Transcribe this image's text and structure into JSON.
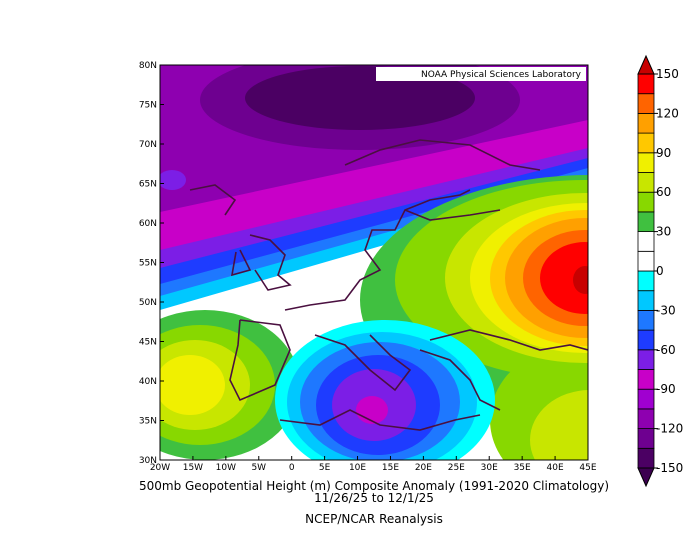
{
  "header": {
    "source": "NOAA Physical Sciences Laboratory"
  },
  "map": {
    "lat_labels": [
      "80N",
      "75N",
      "70N",
      "65N",
      "60N",
      "55N",
      "50N",
      "45N",
      "40N",
      "35N",
      "30N"
    ],
    "lon_labels": [
      "20W",
      "15W",
      "10W",
      "5W",
      "0",
      "5E",
      "10E",
      "15E",
      "20E",
      "25E",
      "30E",
      "35E",
      "40E",
      "45E"
    ]
  },
  "colorbar": {
    "ticks": [
      150,
      120,
      90,
      60,
      30,
      0,
      -30,
      -60,
      -90,
      -120,
      -150
    ],
    "colors": [
      "#4b0063",
      "#6e0090",
      "#8e00b0",
      "#a000d0",
      "#c800c8",
      "#7c1ee6",
      "#1e3cff",
      "#1e78ff",
      "#00c8ff",
      "#00ffff",
      "#ffffff",
      "#ffffff",
      "#40c040",
      "#88d800",
      "#c8e600",
      "#f0f000",
      "#ffc800",
      "#ffa000",
      "#ff6400",
      "#ff0000"
    ],
    "below_color": "#3c0050",
    "above_color": "#c80000"
  },
  "footer": {
    "title": "500mb Geopotential Height (m) Composite Anomaly (1991-2020 Climatology)",
    "dates": "11/26/25  to 12/1/25",
    "source": "NCEP/NCAR Reanalysis"
  }
}
